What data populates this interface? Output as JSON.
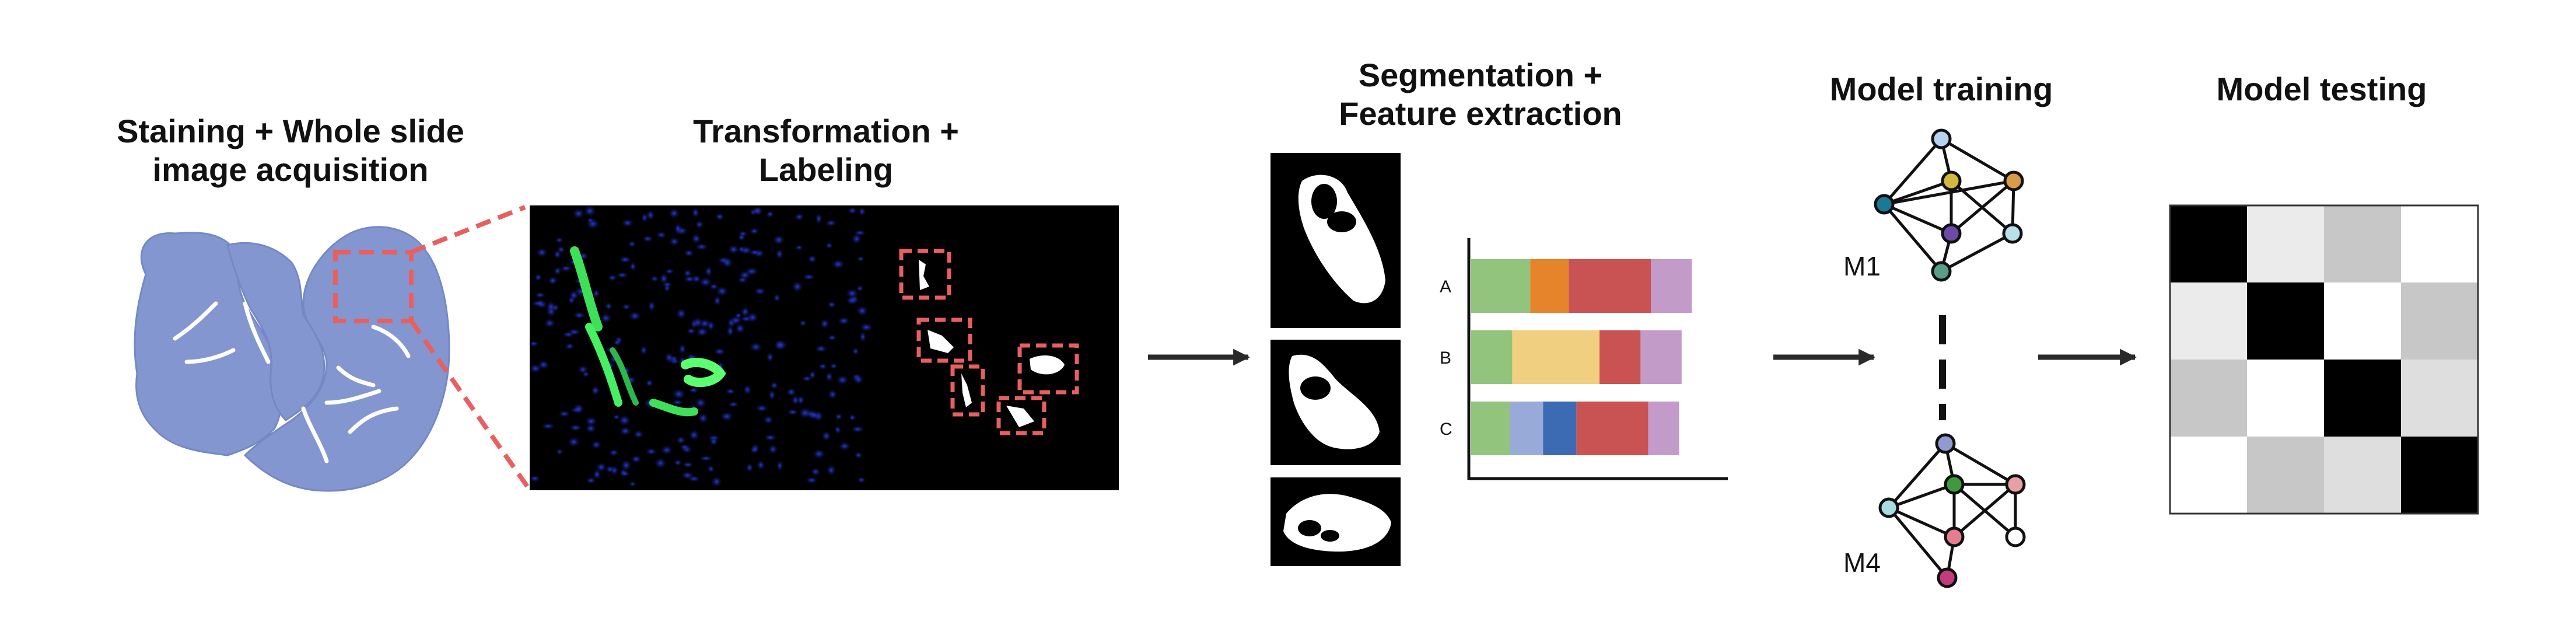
{
  "steps": [
    {
      "title_lines": [
        "Staining + Whole slide",
        "image acquisition"
      ]
    },
    {
      "title_lines": [
        "Transformation +",
        "Labeling"
      ]
    },
    {
      "title_lines": [
        "Segmentation +",
        "Feature extraction"
      ]
    },
    {
      "title_lines": [
        "Model training"
      ]
    },
    {
      "title_lines": [
        "Model testing"
      ]
    }
  ],
  "feature_chart": {
    "type": "stacked-bar",
    "categories": [
      "A",
      "B",
      "C"
    ],
    "rows": [
      [
        0.23,
        0.15,
        0.32,
        0.16
      ],
      [
        0.16,
        0.34,
        0.16,
        0.16
      ],
      [
        0.15,
        0.13,
        0.13,
        0.28,
        0.12
      ]
    ]
  },
  "models": [
    {
      "label": "M1",
      "node_colors": [
        "#b5d3ef",
        "#1a7a96",
        "#d4b640",
        "#d99a4a",
        "#6c4aa8",
        "#b8e0e8",
        "#5a9e86"
      ]
    },
    {
      "label": "M4",
      "node_colors": [
        "#8f9bd1",
        "#a8dce0",
        "#3f9a3d",
        "#e6a0a6",
        "#e37e8f",
        "#ffffff",
        "#c23b7c"
      ]
    }
  ],
  "confusion_matrix": {
    "values": [
      [
        1.0,
        0.08,
        0.22,
        0.0
      ],
      [
        0.08,
        1.0,
        0.0,
        0.22
      ],
      [
        0.22,
        0.0,
        1.0,
        0.13
      ],
      [
        0.0,
        0.22,
        0.13,
        1.0
      ]
    ]
  },
  "colors": {
    "tissue": "#8496cf",
    "accent_dashed": "#e85f5f",
    "arrow": "#2a2a2a",
    "green": "#93c47d",
    "orange": "#e5842b",
    "red": "#c95353",
    "purple": "#c39bc9",
    "yellow": "#f0d080",
    "light_blue": "#98abd8",
    "blue": "#3d6bb3"
  }
}
